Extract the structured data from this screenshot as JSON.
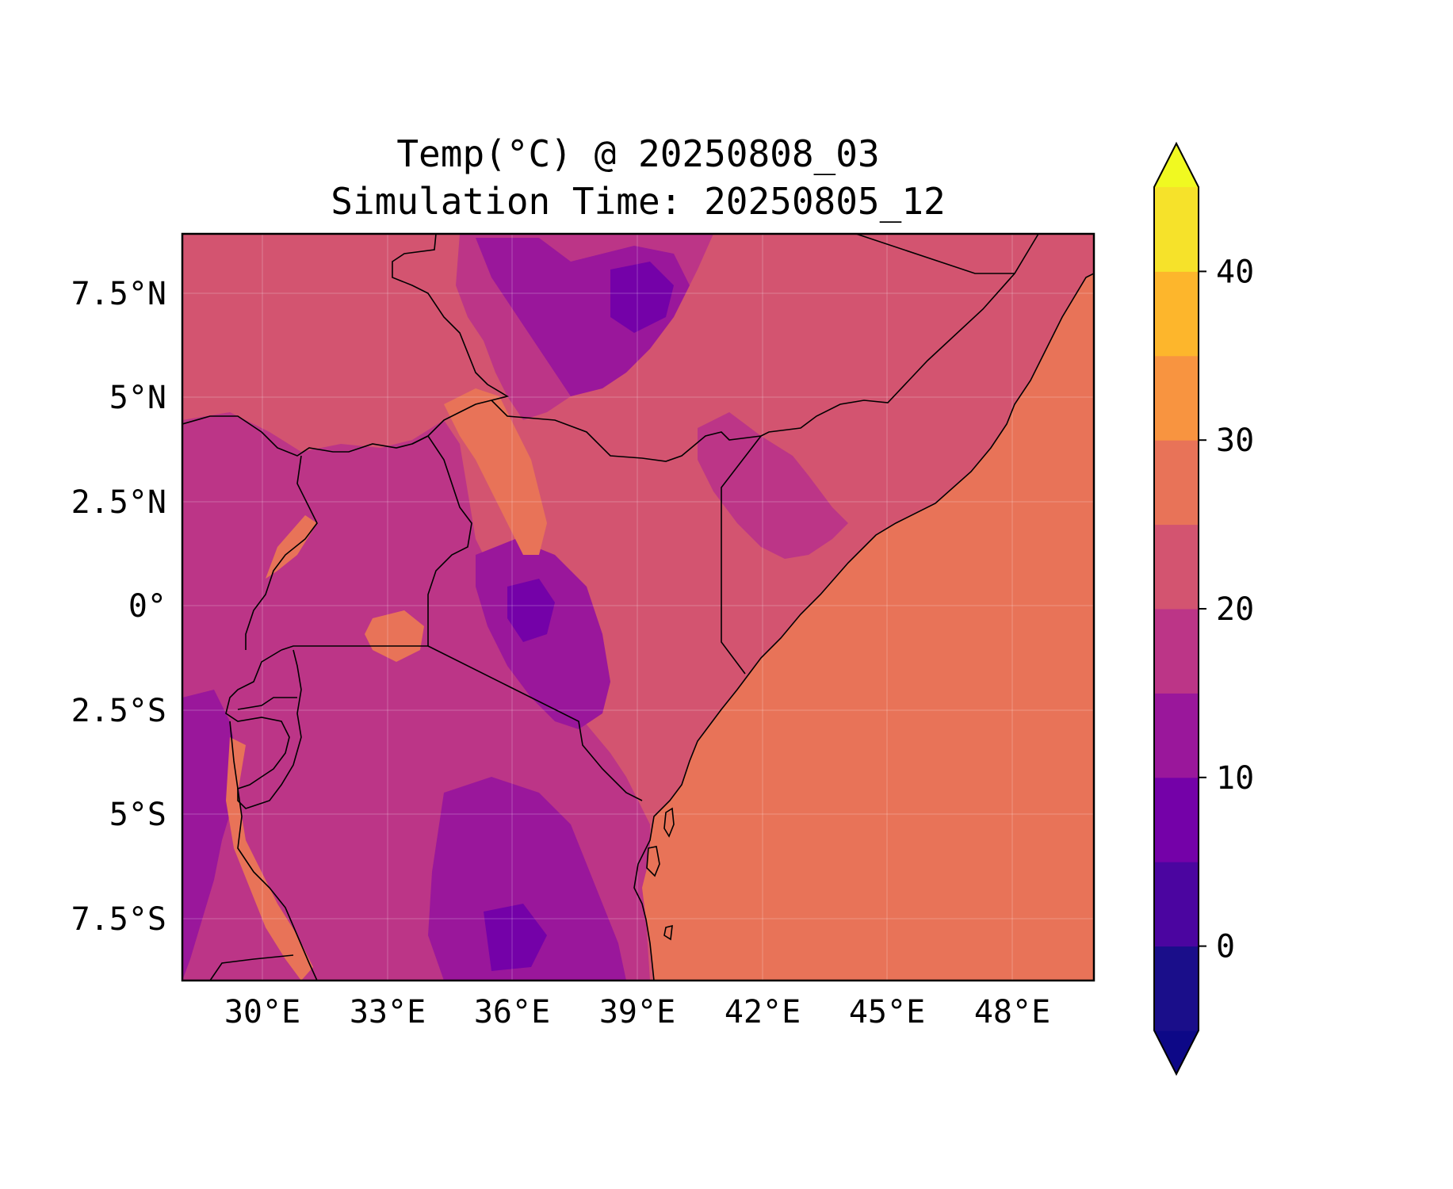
{
  "title": {
    "line1": "Temp(°C) @ 20250808_03",
    "line2": "Simulation Time: 20250805_12"
  },
  "map": {
    "variable": "Temp(°C)",
    "lon_range": [
      27.3,
      49.6
    ],
    "lat_range": [
      -9.0,
      8.9
    ],
    "x_ticks": [
      "30°E",
      "33°E",
      "36°E",
      "39°E",
      "42°E",
      "45°E",
      "48°E"
    ],
    "y_ticks": [
      "7.5°N",
      "5°N",
      "2.5°N",
      "0°",
      "2.5°S",
      "5°S",
      "7.5°S"
    ],
    "gridlines": true,
    "ocean_color": "#e87358",
    "land_base_color": "#d35470"
  },
  "colorbar": {
    "levels": [
      -5,
      0,
      5,
      10,
      15,
      20,
      25,
      30,
      35,
      40,
      45
    ],
    "tick_labels": [
      "0",
      "10",
      "20",
      "30",
      "40"
    ],
    "tick_values": [
      0,
      10,
      20,
      30,
      40
    ],
    "colors": [
      "#1a0e8a",
      "#4b05a0",
      "#7401a8",
      "#9a179b",
      "#bc3587",
      "#d35470",
      "#e87358",
      "#f89440",
      "#fdb62c",
      "#f6e22a"
    ],
    "under_color": "#0d0887",
    "over_color": "#f0f921",
    "extend": "both"
  }
}
